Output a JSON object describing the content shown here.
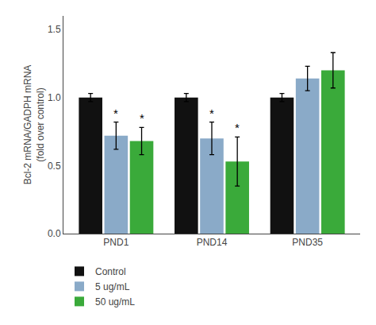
{
  "chart_data": {
    "type": "bar",
    "ylabel": "Bcl-2 mRNA/GADPH mRNA\n(fold over control)",
    "categories": [
      "PND1",
      "PND14",
      "PND35"
    ],
    "series": [
      {
        "name": "Control",
        "color": "#111111",
        "values": [
          1.0,
          1.0,
          1.0
        ],
        "errors": [
          0.03,
          0.03,
          0.03
        ]
      },
      {
        "name": "5 ug/mL",
        "color": "#8aaac8",
        "values": [
          0.72,
          0.7,
          1.14
        ],
        "errors": [
          0.1,
          0.12,
          0.09
        ]
      },
      {
        "name": "50 ug/mL",
        "color": "#3aaa3a",
        "values": [
          0.68,
          0.53,
          1.2
        ],
        "errors": [
          0.1,
          0.18,
          0.13
        ]
      }
    ],
    "annotations": [
      {
        "text": "*",
        "category": "PND1",
        "series": "5 ug/mL"
      },
      {
        "text": "*",
        "category": "PND1",
        "series": "50 ug/mL"
      },
      {
        "text": "*",
        "category": "PND14",
        "series": "5 ug/mL"
      },
      {
        "text": "*",
        "category": "PND14",
        "series": "50 ug/mL"
      }
    ],
    "ylim": [
      0.0,
      1.6
    ],
    "yticks": [
      {
        "value": 0.0,
        "label": "0.0"
      },
      0.5,
      {
        "value": 1.0,
        "label": "1.0"
      },
      1.5
    ],
    "grid": false,
    "legend": "bottom"
  }
}
